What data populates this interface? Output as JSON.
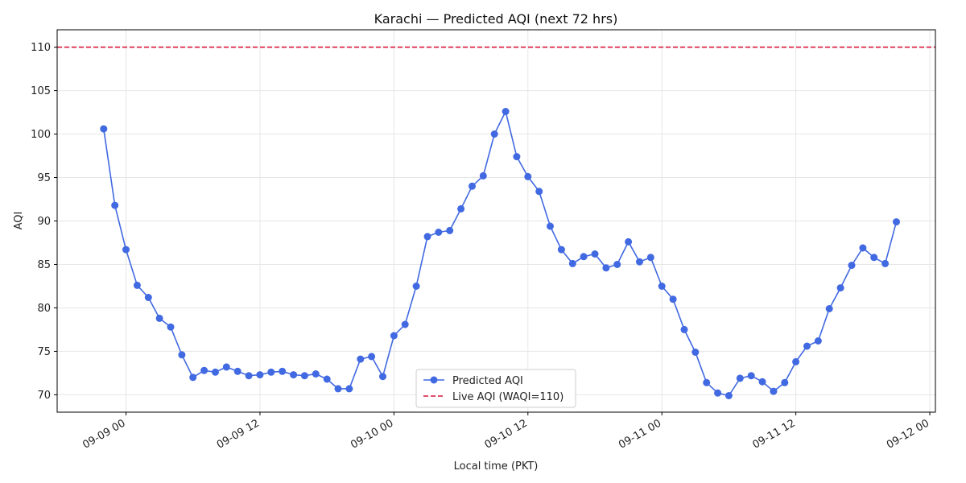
{
  "chart_data": {
    "type": "line",
    "title": "Karachi — Predicted AQI (next 72 hrs)",
    "xlabel": "Local time (PKT)",
    "ylabel": "AQI",
    "xlim": [
      "2025-09-08T17:50",
      "2025-09-12T00:30"
    ],
    "ylim": [
      68,
      112
    ],
    "yticks": [
      70,
      75,
      80,
      85,
      90,
      95,
      100,
      105,
      110
    ],
    "xticks": [
      {
        "t": "2025-09-09T00:00",
        "label": "09-09 00"
      },
      {
        "t": "2025-09-09T12:00",
        "label": "09-09 12"
      },
      {
        "t": "2025-09-10T00:00",
        "label": "09-10 00"
      },
      {
        "t": "2025-09-10T12:00",
        "label": "09-10 12"
      },
      {
        "t": "2025-09-11T00:00",
        "label": "09-11 00"
      },
      {
        "t": "2025-09-11T12:00",
        "label": "09-11 12"
      },
      {
        "t": "2025-09-12T00:00",
        "label": "09-12 00"
      }
    ],
    "grid": true,
    "legend_position": "bottom-center",
    "series": [
      {
        "name": "Predicted AQI",
        "color": "#4169e1",
        "marker": "circle",
        "start": "2025-09-08T22:00",
        "step_hours": 1,
        "values": [
          100.6,
          91.8,
          86.7,
          82.6,
          81.2,
          78.8,
          77.8,
          74.6,
          72.0,
          72.8,
          72.6,
          73.2,
          72.7,
          72.2,
          72.3,
          72.6,
          72.7,
          72.3,
          72.2,
          72.4,
          71.8,
          70.7,
          70.7,
          74.1,
          74.4,
          72.1,
          76.8,
          78.1,
          82.5,
          88.2,
          88.7,
          88.9,
          91.4,
          94.0,
          95.2,
          100.0,
          102.6,
          97.4,
          95.1,
          93.4,
          89.4,
          86.7,
          85.1,
          85.9,
          86.2,
          84.6,
          85.0,
          87.6,
          85.3,
          85.8,
          82.5,
          81.0,
          77.5,
          74.9,
          71.4,
          70.2,
          69.9,
          71.9,
          72.2,
          71.5,
          70.4,
          71.4,
          73.8,
          75.6,
          76.2,
          79.9,
          82.3,
          84.9,
          86.9,
          85.8,
          85.1,
          89.9
        ]
      }
    ],
    "reference_lines": [
      {
        "name": "Live AQI (WAQI=110)",
        "y": 110,
        "color": "#dc143c",
        "style": "dashed"
      }
    ]
  }
}
